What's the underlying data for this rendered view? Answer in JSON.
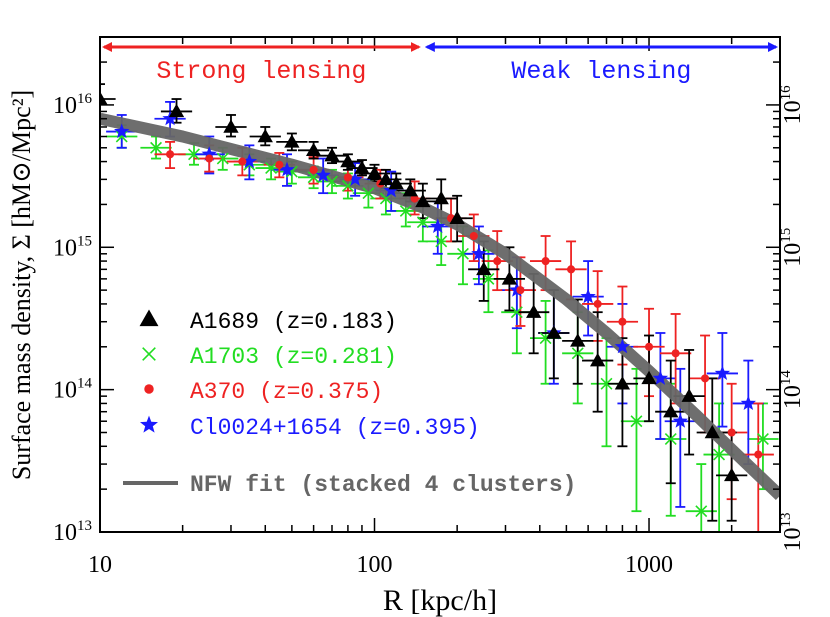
{
  "chart_data": {
    "type": "scatter",
    "xlabel": "R [kpc/h]",
    "ylabel": "Surface mass density, Σ [hM⊙/Mpc²]",
    "xscale": "log",
    "yscale": "log",
    "xlim": [
      10,
      3000
    ],
    "ylim": [
      10000000000000.0,
      3e+16
    ],
    "x_ticks": [
      {
        "value": 10,
        "label": "10"
      },
      {
        "value": 100,
        "label": "100"
      },
      {
        "value": 1000,
        "label": "1000"
      }
    ],
    "y_ticks": [
      {
        "value": 10000000000000.0,
        "base": "10",
        "exp": "13"
      },
      {
        "value": 100000000000000.0,
        "base": "10",
        "exp": "14"
      },
      {
        "value": 1000000000000000.0,
        "base": "10",
        "exp": "15"
      },
      {
        "value": 1e+16,
        "base": "10",
        "exp": "16"
      }
    ],
    "regions": [
      {
        "label": "Strong lensing",
        "from": 10,
        "to": 150,
        "color": "#ee2222"
      },
      {
        "label": "Weak lensing",
        "from": 150,
        "to": 3000,
        "color": "#1a1aff"
      }
    ],
    "legend_placement": "lower-left",
    "grid": false,
    "series": [
      {
        "name": "A1689 (z=0.183)",
        "marker": "triangle",
        "color": "#000000",
        "points": [
          [
            10,
            1.1e+16,
            1.4e+16,
            8000000000000000.0
          ],
          [
            19,
            9000000000000000.0,
            1.1e+16,
            7500000000000000.0
          ],
          [
            30,
            7000000000000000.0,
            8500000000000000.0,
            6000000000000000.0
          ],
          [
            40,
            6000000000000000.0,
            7000000000000000.0,
            5200000000000000.0
          ],
          [
            50,
            5500000000000000.0,
            6300000000000000.0,
            4800000000000000.0
          ],
          [
            60,
            4800000000000000.0,
            5500000000000000.0,
            4200000000000000.0
          ],
          [
            70,
            4400000000000000.0,
            5000000000000000.0,
            3900000000000000.0
          ],
          [
            80,
            4000000000000000.0,
            4500000000000000.0,
            3500000000000000.0
          ],
          [
            90,
            3600000000000000.0,
            4100000000000000.0,
            3200000000000000.0
          ],
          [
            100,
            3300000000000000.0,
            3800000000000000.0,
            2900000000000000.0
          ],
          [
            110,
            3000000000000000.0,
            3500000000000000.0,
            2600000000000000.0
          ],
          [
            120,
            2800000000000000.0,
            3300000000000000.0,
            2400000000000000.0
          ],
          [
            135,
            2500000000000000.0,
            3000000000000000.0,
            2100000000000000.0
          ],
          [
            150,
            2100000000000000.0,
            2800000000000000.0,
            1600000000000000.0
          ],
          [
            175,
            2200000000000000.0,
            3000000000000000.0,
            1600000000000000.0
          ],
          [
            200,
            1600000000000000.0,
            2300000000000000.0,
            1100000000000000.0
          ],
          [
            250,
            700000000000000.0,
            1100000000000000.0,
            420000000000000.0
          ],
          [
            310,
            600000000000000.0,
            1000000000000000.0,
            360000000000000.0
          ],
          [
            380,
            350000000000000.0,
            650000000000000.0,
            180000000000000.0
          ],
          [
            450,
            250000000000000.0,
            500000000000000.0,
            120000000000000.0
          ],
          [
            550,
            220000000000000.0,
            430000000000000.0,
            110000000000000.0
          ],
          [
            650,
            160000000000000.0,
            350000000000000.0,
            70000000000000.0
          ],
          [
            800,
            110000000000000.0,
            230000000000000.0,
            40000000000000.0
          ],
          [
            1000,
            120000000000000.0,
            240000000000000.0,
            60000000000000.0
          ],
          [
            1200,
            70000000000000.0,
            160000000000000.0,
            22000000000000.0
          ],
          [
            1400,
            90000000000000.0,
            190000000000000.0,
            35000000000000.0
          ],
          [
            1700,
            50000000000000.0,
            120000000000000.0,
            12000000000000.0
          ],
          [
            2000,
            25000000000000.0,
            50000000000000.0,
            12000000000000.0
          ]
        ]
      },
      {
        "name": "A1703 (z=0.281)",
        "marker": "cross",
        "color": "#22dd22",
        "points": [
          [
            12,
            6000000000000000.0,
            7200000000000000.0,
            5000000000000000.0
          ],
          [
            16,
            5000000000000000.0,
            6000000000000000.0,
            4200000000000000.0
          ],
          [
            22,
            4500000000000000.0,
            5400000000000000.0,
            3800000000000000.0
          ],
          [
            28,
            4200000000000000.0,
            5000000000000000.0,
            3500000000000000.0
          ],
          [
            35,
            3800000000000000.0,
            4500000000000000.0,
            3200000000000000.0
          ],
          [
            42,
            3600000000000000.0,
            4200000000000000.0,
            3000000000000000.0
          ],
          [
            50,
            3400000000000000.0,
            4000000000000000.0,
            2800000000000000.0
          ],
          [
            60,
            3100000000000000.0,
            3700000000000000.0,
            2600000000000000.0
          ],
          [
            70,
            2900000000000000.0,
            3500000000000000.0,
            2400000000000000.0
          ],
          [
            80,
            2700000000000000.0,
            3300000000000000.0,
            2200000000000000.0
          ],
          [
            95,
            2400000000000000.0,
            3000000000000000.0,
            1900000000000000.0
          ],
          [
            110,
            2200000000000000.0,
            2800000000000000.0,
            1700000000000000.0
          ],
          [
            130,
            1800000000000000.0,
            2400000000000000.0,
            1400000000000000.0
          ],
          [
            150,
            1500000000000000.0,
            2100000000000000.0,
            1100000000000000.0
          ],
          [
            175,
            1100000000000000.0,
            1600000000000000.0,
            750000000000000.0
          ],
          [
            210,
            900000000000000.0,
            1400000000000000.0,
            550000000000000.0
          ],
          [
            260,
            600000000000000.0,
            950000000000000.0,
            350000000000000.0
          ],
          [
            330,
            350000000000000.0,
            600000000000000.0,
            180000000000000.0
          ],
          [
            420,
            230000000000000.0,
            420000000000000.0,
            110000000000000.0
          ],
          [
            550,
            180000000000000.0,
            350000000000000.0,
            80000000000000.0
          ],
          [
            700,
            110000000000000.0,
            230000000000000.0,
            40000000000000.0
          ],
          [
            900,
            60000000000000.0,
            140000000000000.0,
            14000000000000.0
          ],
          [
            1200,
            45000000000000.0,
            110000000000000.0,
            13000000000000.0
          ],
          [
            1550,
            14000000000000.0,
            30000000000000.0,
            10000000000000.0
          ],
          [
            1800,
            35000000000000.0,
            80000000000000.0,
            10000000000000.0
          ],
          [
            2600,
            45000000000000.0,
            80000000000000.0,
            20000000000000.0
          ]
        ]
      },
      {
        "name": "A370 (z=0.375)",
        "marker": "circle",
        "color": "#ee2222",
        "points": [
          [
            18,
            4500000000000000.0,
            5500000000000000.0,
            3600000000000000.0
          ],
          [
            25,
            4200000000000000.0,
            5200000000000000.0,
            3400000000000000.0
          ],
          [
            33,
            4000000000000000.0,
            5000000000000000.0,
            3200000000000000.0
          ],
          [
            45,
            3800000000000000.0,
            4600000000000000.0,
            3100000000000000.0
          ],
          [
            60,
            3500000000000000.0,
            4300000000000000.0,
            2800000000000000.0
          ],
          [
            80,
            3100000000000000.0,
            3900000000000000.0,
            2500000000000000.0
          ],
          [
            105,
            2800000000000000.0,
            3500000000000000.0,
            2200000000000000.0
          ],
          [
            140,
            2200000000000000.0,
            2900000000000000.0,
            1700000000000000.0
          ],
          [
            190,
            1600000000000000.0,
            2200000000000000.0,
            1100000000000000.0
          ],
          [
            230,
            1200000000000000.0,
            1700000000000000.0,
            800000000000000.0
          ],
          [
            280,
            800000000000000.0,
            1300000000000000.0,
            500000000000000.0
          ],
          [
            340,
            500000000000000.0,
            850000000000000.0,
            280000000000000.0
          ],
          [
            420,
            800000000000000.0,
            1200000000000000.0,
            500000000000000.0
          ],
          [
            520,
            700000000000000.0,
            1100000000000000.0,
            430000000000000.0
          ],
          [
            650,
            400000000000000.0,
            680000000000000.0,
            220000000000000.0
          ],
          [
            800,
            300000000000000.0,
            530000000000000.0,
            150000000000000.0
          ],
          [
            1000,
            200000000000000.0,
            370000000000000.0,
            90000000000000.0
          ],
          [
            1250,
            180000000000000.0,
            340000000000000.0,
            80000000000000.0
          ],
          [
            1600,
            120000000000000.0,
            240000000000000.0,
            50000000000000.0
          ],
          [
            2000,
            50000000000000.0,
            110000000000000.0,
            17000000000000.0
          ],
          [
            2500,
            35000000000000.0,
            80000000000000.0,
            10000000000000.0
          ]
        ]
      },
      {
        "name": "Cl0024+1654 (z=0.395)",
        "marker": "star",
        "color": "#1a1aff",
        "points": [
          [
            12,
            6500000000000000.0,
            8500000000000000.0,
            5000000000000000.0
          ],
          [
            18,
            8000000000000000.0,
            1.05e+16,
            6000000000000000.0
          ],
          [
            25,
            4500000000000000.0,
            6000000000000000.0,
            3300000000000000.0
          ],
          [
            35,
            4000000000000000.0,
            5200000000000000.0,
            3000000000000000.0
          ],
          [
            48,
            3500000000000000.0,
            4500000000000000.0,
            2700000000000000.0
          ],
          [
            65,
            3200000000000000.0,
            4200000000000000.0,
            2400000000000000.0
          ],
          [
            85,
            3000000000000000.0,
            3900000000000000.0,
            2300000000000000.0
          ],
          [
            115,
            2500000000000000.0,
            3400000000000000.0,
            1800000000000000.0
          ],
          [
            170,
            1400000000000000.0,
            2100000000000000.0,
            900000000000000.0
          ],
          [
            240,
            900000000000000.0,
            1400000000000000.0,
            550000000000000.0
          ],
          [
            330,
            500000000000000.0,
            850000000000000.0,
            270000000000000.0
          ],
          [
            450,
            250000000000000.0,
            500000000000000.0,
            110000000000000.0
          ],
          [
            600,
            450000000000000.0,
            800000000000000.0,
            240000000000000.0
          ],
          [
            800,
            200000000000000.0,
            400000000000000.0,
            80000000000000.0
          ],
          [
            1100,
            120000000000000.0,
            250000000000000.0,
            45000000000000.0
          ],
          [
            1300,
            60000000000000.0,
            140000000000000.0,
            15000000000000.0
          ],
          [
            1850,
            130000000000000.0,
            250000000000000.0,
            55000000000000.0
          ],
          [
            2300,
            80000000000000.0,
            160000000000000.0,
            30000000000000.0
          ]
        ]
      }
    ],
    "fit": {
      "name": "NFW fit (stacked 4 clusters)",
      "color": "#666666",
      "points": [
        [
          10,
          8000000000000000.0
        ],
        [
          20,
          6000000000000000.0
        ],
        [
          50,
          3800000000000000.0
        ],
        [
          100,
          2600000000000000.0
        ],
        [
          150,
          1900000000000000.0
        ],
        [
          200,
          1450000000000000.0
        ],
        [
          300,
          900000000000000.0
        ],
        [
          500,
          430000000000000.0
        ],
        [
          700,
          250000000000000.0
        ],
        [
          1000,
          135000000000000.0
        ],
        [
          1500,
          65000000000000.0
        ],
        [
          2000,
          38000000000000.0
        ],
        [
          3000,
          18000000000000.0
        ]
      ]
    }
  }
}
